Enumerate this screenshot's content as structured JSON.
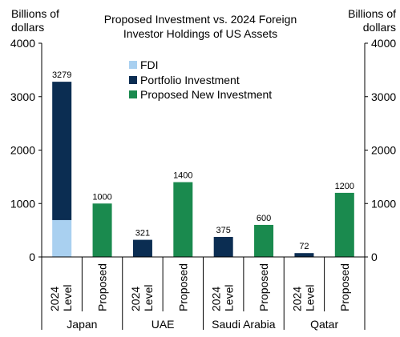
{
  "chart_data": {
    "type": "bar",
    "stacked": true,
    "title_lines": [
      "Proposed Investment vs. 2024 Foreign",
      "Investor Holdings of US Assets"
    ],
    "ylabel_left_lines": [
      "Billions of",
      "dollars"
    ],
    "ylabel_right_lines": [
      "Billions of",
      "dollars"
    ],
    "ylim": [
      0,
      4000
    ],
    "yticks": [
      "0",
      "1000",
      "2000",
      "3000",
      "4000"
    ],
    "legend_position": "top-left",
    "legend": [
      {
        "name": "FDI",
        "color": "#a9d0f0"
      },
      {
        "name": "Portfolio Investment",
        "color": "#0b2d52"
      },
      {
        "name": "Proposed New Investment",
        "color": "#1a8a4e"
      }
    ],
    "groups": [
      "Japan",
      "UAE",
      "Saudi Arabia",
      "Qatar"
    ],
    "bar_labels": [
      [
        "2024",
        "Level"
      ],
      [
        "Proposed"
      ]
    ],
    "bars": [
      {
        "group": "Japan",
        "kind": "2024",
        "fdi": 690,
        "portfolio": 2589,
        "total_label": "3279"
      },
      {
        "group": "Japan",
        "kind": "proposed",
        "value": 1000,
        "total_label": "1000"
      },
      {
        "group": "UAE",
        "kind": "2024",
        "fdi": 0,
        "portfolio": 321,
        "total_label": "321"
      },
      {
        "group": "UAE",
        "kind": "proposed",
        "value": 1400,
        "total_label": "1400"
      },
      {
        "group": "Saudi Arabia",
        "kind": "2024",
        "fdi": 0,
        "portfolio": 375,
        "total_label": "375"
      },
      {
        "group": "Saudi Arabia",
        "kind": "proposed",
        "value": 600,
        "total_label": "600"
      },
      {
        "group": "Qatar",
        "kind": "2024",
        "fdi": 0,
        "portfolio": 72,
        "total_label": "72"
      },
      {
        "group": "Qatar",
        "kind": "proposed",
        "value": 1200,
        "total_label": "1200"
      }
    ]
  }
}
